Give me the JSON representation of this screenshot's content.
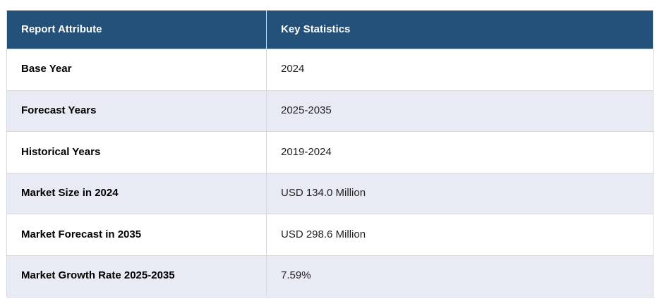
{
  "colors": {
    "header_bg": "#24517a",
    "header_text": "#ffffff",
    "row_alt_bg": "#e8eaf4",
    "row_plain_bg": "#ffffff",
    "border": "#d9d9d9",
    "attr_text": "#000000",
    "value_text": "#222222"
  },
  "table": {
    "columns": [
      "Report Attribute",
      "Key Statistics"
    ],
    "rows": [
      {
        "attribute": "Base Year",
        "value": "2024"
      },
      {
        "attribute": "Forecast Years",
        "value": "2025-2035"
      },
      {
        "attribute": "Historical Years",
        "value": "2019-2024"
      },
      {
        "attribute": "Market Size in 2024",
        "value": "USD 134.0 Million"
      },
      {
        "attribute": "Market Forecast in 2035",
        "value": "USD 298.6 Million"
      },
      {
        "attribute": "Market Growth Rate 2025-2035",
        "value": "7.59%"
      }
    ]
  },
  "chart_data": {
    "type": "table",
    "title": "",
    "columns": [
      "Report Attribute",
      "Key Statistics"
    ],
    "rows": [
      [
        "Base Year",
        "2024"
      ],
      [
        "Forecast Years",
        "2025-2035"
      ],
      [
        "Historical Years",
        "2019-2024"
      ],
      [
        "Market Size in 2024",
        "USD 134.0 Million"
      ],
      [
        "Market Forecast in 2035",
        "USD 298.6 Million"
      ],
      [
        "Market Growth Rate 2025-2035",
        "7.59%"
      ]
    ],
    "notes": {
      "base_year": 2024,
      "forecast_years": [
        2025,
        2035
      ],
      "historical_years": [
        2019,
        2024
      ],
      "market_size_2024_usd_million": 134.0,
      "market_forecast_2035_usd_million": 298.6,
      "market_growth_rate_cagr_percent": 7.59
    }
  }
}
